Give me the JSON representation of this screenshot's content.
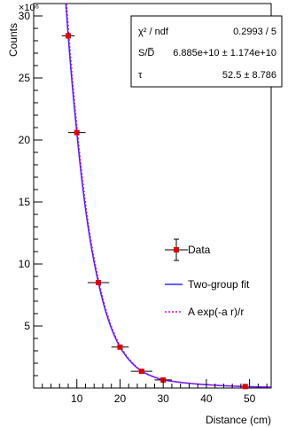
{
  "chart_data": {
    "type": "scatter",
    "xlabel": "Distance (cm)",
    "ylabel": "Counts",
    "y_multiplier_label": "×10⁶",
    "xlim": [
      0,
      55
    ],
    "ylim": [
      0,
      31
    ],
    "x_ticks": [
      10,
      20,
      30,
      40,
      50
    ],
    "y_ticks": [
      5,
      10,
      15,
      20,
      25,
      30
    ],
    "grid": false,
    "legend_placement": "bottom-right",
    "legend": {
      "data_label": "Data",
      "fit_label": "Two-group fit",
      "exp_label": "A exp(-a r)/r"
    },
    "stats": [
      {
        "name": "χ² / ndf",
        "value": "0.2993 / 5"
      },
      {
        "name": "S/D̅",
        "value": "6.885e+10 ± 1.174e+10"
      },
      {
        "name": "τ",
        "value": "52.5 ± 8.786"
      }
    ],
    "series": [
      {
        "name": "Data",
        "color": "#e00000",
        "points": [
          {
            "x": 8,
            "y": 28.4,
            "xerr": 1.5,
            "yerr": 0.25
          },
          {
            "x": 10,
            "y": 20.6,
            "xerr": 2.0,
            "yerr": 0.2
          },
          {
            "x": 15,
            "y": 8.5,
            "xerr": 2.5,
            "yerr": 0.15
          },
          {
            "x": 20,
            "y": 3.3,
            "xerr": 2.0,
            "yerr": 0.1
          },
          {
            "x": 25,
            "y": 1.35,
            "xerr": 2.5,
            "yerr": 0.08
          },
          {
            "x": 30,
            "y": 0.65,
            "xerr": 2.0,
            "yerr": 0.05
          },
          {
            "x": 49,
            "y": 0.12,
            "xerr": 0,
            "yerr": 0
          }
        ]
      },
      {
        "name": "Two-group fit",
        "color": "#2b2bff",
        "style": "solid"
      },
      {
        "name": "A exp(-a r)/r",
        "color": "#e000e0",
        "style": "dotted"
      }
    ]
  }
}
